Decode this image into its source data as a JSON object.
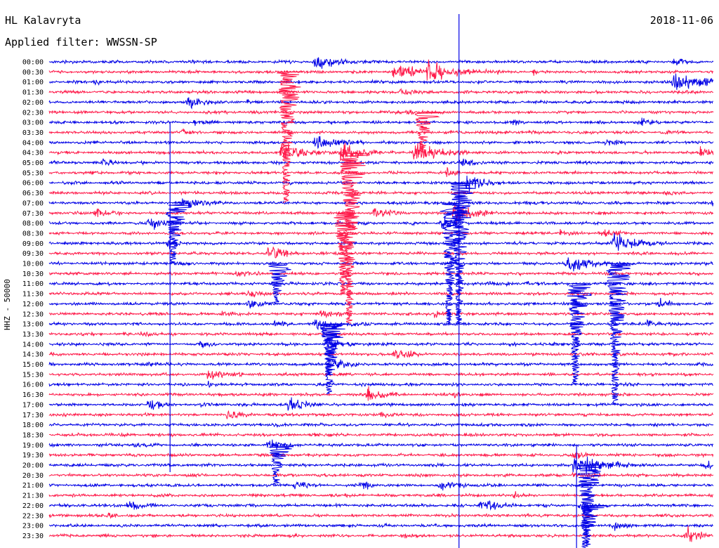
{
  "header": {
    "station": "HL Kalavryta",
    "date": "2018-11-06",
    "filter_text": "Applied filter: WWSSN-SP"
  },
  "chart_data": {
    "type": "line",
    "title": "HL Kalavryta",
    "ylabel": "HHZ - 50000",
    "time_labels": [
      "00:00",
      "00:30",
      "01:00",
      "01:30",
      "02:00",
      "02:30",
      "03:00",
      "03:30",
      "04:00",
      "04:30",
      "05:00",
      "05:30",
      "06:00",
      "06:30",
      "07:00",
      "07:30",
      "08:00",
      "08:30",
      "09:00",
      "09:30",
      "10:00",
      "10:30",
      "11:00",
      "11:30",
      "12:00",
      "12:30",
      "13:00",
      "13:30",
      "14:00",
      "14:30",
      "15:00",
      "15:30",
      "16:00",
      "16:30",
      "17:00",
      "17:30",
      "18:00",
      "18:30",
      "19:00",
      "19:30",
      "20:00",
      "20:30",
      "21:00",
      "21:30",
      "22:00",
      "22:30",
      "23:00",
      "23:30"
    ],
    "colors": [
      "#0000e6",
      "#ff1a4a"
    ],
    "marker_color": "#0000e6",
    "events": [
      [
        0,
        0.4,
        0.6,
        30
      ],
      [
        0,
        0.94,
        0.3,
        15
      ],
      [
        1,
        0.52,
        0.7,
        30
      ],
      [
        1,
        0.57,
        0.9,
        35
      ],
      [
        1,
        0.67,
        0.15,
        10
      ],
      [
        1,
        0.73,
        0.2,
        12
      ],
      [
        2,
        0.07,
        0.2,
        10
      ],
      [
        2,
        0.49,
        0.2,
        8
      ],
      [
        2,
        0.94,
        0.9,
        40
      ],
      [
        3,
        0.53,
        0.35,
        12
      ],
      [
        4,
        0.21,
        0.7,
        20
      ],
      [
        4,
        0.3,
        0.2,
        10
      ],
      [
        5,
        0.54,
        0.2,
        10
      ],
      [
        6,
        0.22,
        0.25,
        12
      ],
      [
        6,
        0.7,
        0.15,
        10
      ],
      [
        6,
        0.89,
        0.25,
        12
      ],
      [
        7,
        0.2,
        0.2,
        10
      ],
      [
        7,
        0.93,
        0.2,
        12
      ],
      [
        8,
        0.4,
        0.6,
        30
      ],
      [
        8,
        0.84,
        0.3,
        12
      ],
      [
        9,
        0.35,
        1.0,
        25
      ],
      [
        9,
        0.44,
        0.9,
        25
      ],
      [
        9,
        0.55,
        1.0,
        30
      ],
      [
        9,
        0.98,
        0.5,
        20
      ],
      [
        10,
        0.08,
        0.3,
        12
      ],
      [
        10,
        0.62,
        0.5,
        15
      ],
      [
        11,
        0.6,
        0.4,
        12
      ],
      [
        12,
        0.63,
        0.8,
        20
      ],
      [
        13,
        0.93,
        0.2,
        10
      ],
      [
        14,
        0.2,
        0.5,
        25
      ],
      [
        14,
        1.0,
        0.4,
        10
      ],
      [
        15,
        0.07,
        0.4,
        15
      ],
      [
        15,
        0.49,
        0.4,
        20
      ],
      [
        15,
        0.61,
        0.9,
        25
      ],
      [
        16,
        0.15,
        0.6,
        20
      ],
      [
        16,
        0.59,
        0.5,
        15
      ],
      [
        17,
        0.77,
        0.3,
        10
      ],
      [
        17,
        0.83,
        0.4,
        15
      ],
      [
        18,
        0.18,
        0.4,
        12
      ],
      [
        18,
        0.85,
        0.8,
        30
      ],
      [
        19,
        0.33,
        0.7,
        20
      ],
      [
        20,
        0.78,
        0.9,
        25
      ],
      [
        21,
        0.28,
        0.3,
        15
      ],
      [
        22,
        0.66,
        0.3,
        15
      ],
      [
        22,
        0.72,
        0.2,
        10
      ],
      [
        23,
        0.3,
        0.3,
        15
      ],
      [
        24,
        0.3,
        0.4,
        15
      ],
      [
        24,
        0.92,
        0.4,
        15
      ],
      [
        25,
        0.41,
        0.4,
        15
      ],
      [
        25,
        0.26,
        0.3,
        12
      ],
      [
        25,
        0.58,
        0.3,
        12
      ],
      [
        26,
        0.34,
        0.2,
        12
      ],
      [
        26,
        0.4,
        0.4,
        15
      ],
      [
        26,
        0.45,
        0.3,
        12
      ],
      [
        26,
        0.9,
        0.3,
        15
      ],
      [
        27,
        0.14,
        0.2,
        10
      ],
      [
        28,
        0.42,
        0.5,
        20
      ],
      [
        28,
        0.23,
        0.3,
        12
      ],
      [
        29,
        0.52,
        0.5,
        20
      ],
      [
        30,
        0.43,
        0.5,
        18
      ],
      [
        30,
        0.15,
        0.2,
        10
      ],
      [
        31,
        0.24,
        0.7,
        20
      ],
      [
        32,
        0.24,
        0.2,
        10
      ],
      [
        33,
        0.48,
        0.6,
        20
      ],
      [
        33,
        0.61,
        0.2,
        10
      ],
      [
        34,
        0.15,
        0.5,
        15
      ],
      [
        34,
        0.36,
        0.7,
        20
      ],
      [
        34,
        0.23,
        0.2,
        10
      ],
      [
        35,
        0.27,
        0.4,
        15
      ],
      [
        35,
        0.5,
        0.3,
        12
      ],
      [
        36,
        0.34,
        0.2,
        10
      ],
      [
        37,
        0.4,
        0.2,
        10
      ],
      [
        38,
        0.33,
        0.5,
        15
      ],
      [
        38,
        0.13,
        0.2,
        10
      ],
      [
        39,
        0.79,
        0.3,
        12
      ],
      [
        40,
        0.79,
        1.0,
        35
      ],
      [
        40,
        0.99,
        0.4,
        15
      ],
      [
        41,
        0.79,
        0.3,
        15
      ],
      [
        42,
        0.37,
        0.3,
        15
      ],
      [
        42,
        0.47,
        0.3,
        15
      ],
      [
        42,
        0.59,
        0.5,
        18
      ],
      [
        43,
        0.7,
        0.2,
        10
      ],
      [
        44,
        0.12,
        0.4,
        18
      ],
      [
        44,
        0.65,
        0.6,
        20
      ],
      [
        44,
        0.8,
        0.3,
        12
      ],
      [
        45,
        0.09,
        0.2,
        10
      ],
      [
        46,
        0.85,
        0.3,
        15
      ],
      [
        47,
        0.96,
        0.7,
        20
      ],
      [
        47,
        0.53,
        0.2,
        10
      ]
    ],
    "deep_events": [
      [
        1,
        0.355,
        13,
        1.0
      ],
      [
        9,
        0.45,
        17,
        1.0
      ],
      [
        20,
        0.34,
        4,
        1.0
      ],
      [
        5,
        0.56,
        4,
        1.0
      ],
      [
        12,
        0.615,
        14,
        1.0
      ],
      [
        14,
        0.185,
        6,
        1.0
      ],
      [
        14,
        0.6,
        12,
        1.0
      ],
      [
        20,
        0.85,
        14,
        1.0
      ],
      [
        22,
        0.79,
        10,
        1.0
      ],
      [
        40,
        0.805,
        9,
        1.0
      ],
      [
        26,
        0.42,
        7,
        1.0
      ],
      [
        38,
        0.34,
        4,
        1.0
      ],
      [
        15,
        0.44,
        8,
        1.0
      ],
      [
        26,
        0.42,
        5,
        1.0
      ],
      [
        44,
        0.81,
        4,
        1.0
      ]
    ],
    "vlines": [
      [
        0.182,
        6,
        40
      ],
      [
        0.617,
        0,
        48
      ],
      [
        0.794,
        38,
        48
      ]
    ]
  }
}
